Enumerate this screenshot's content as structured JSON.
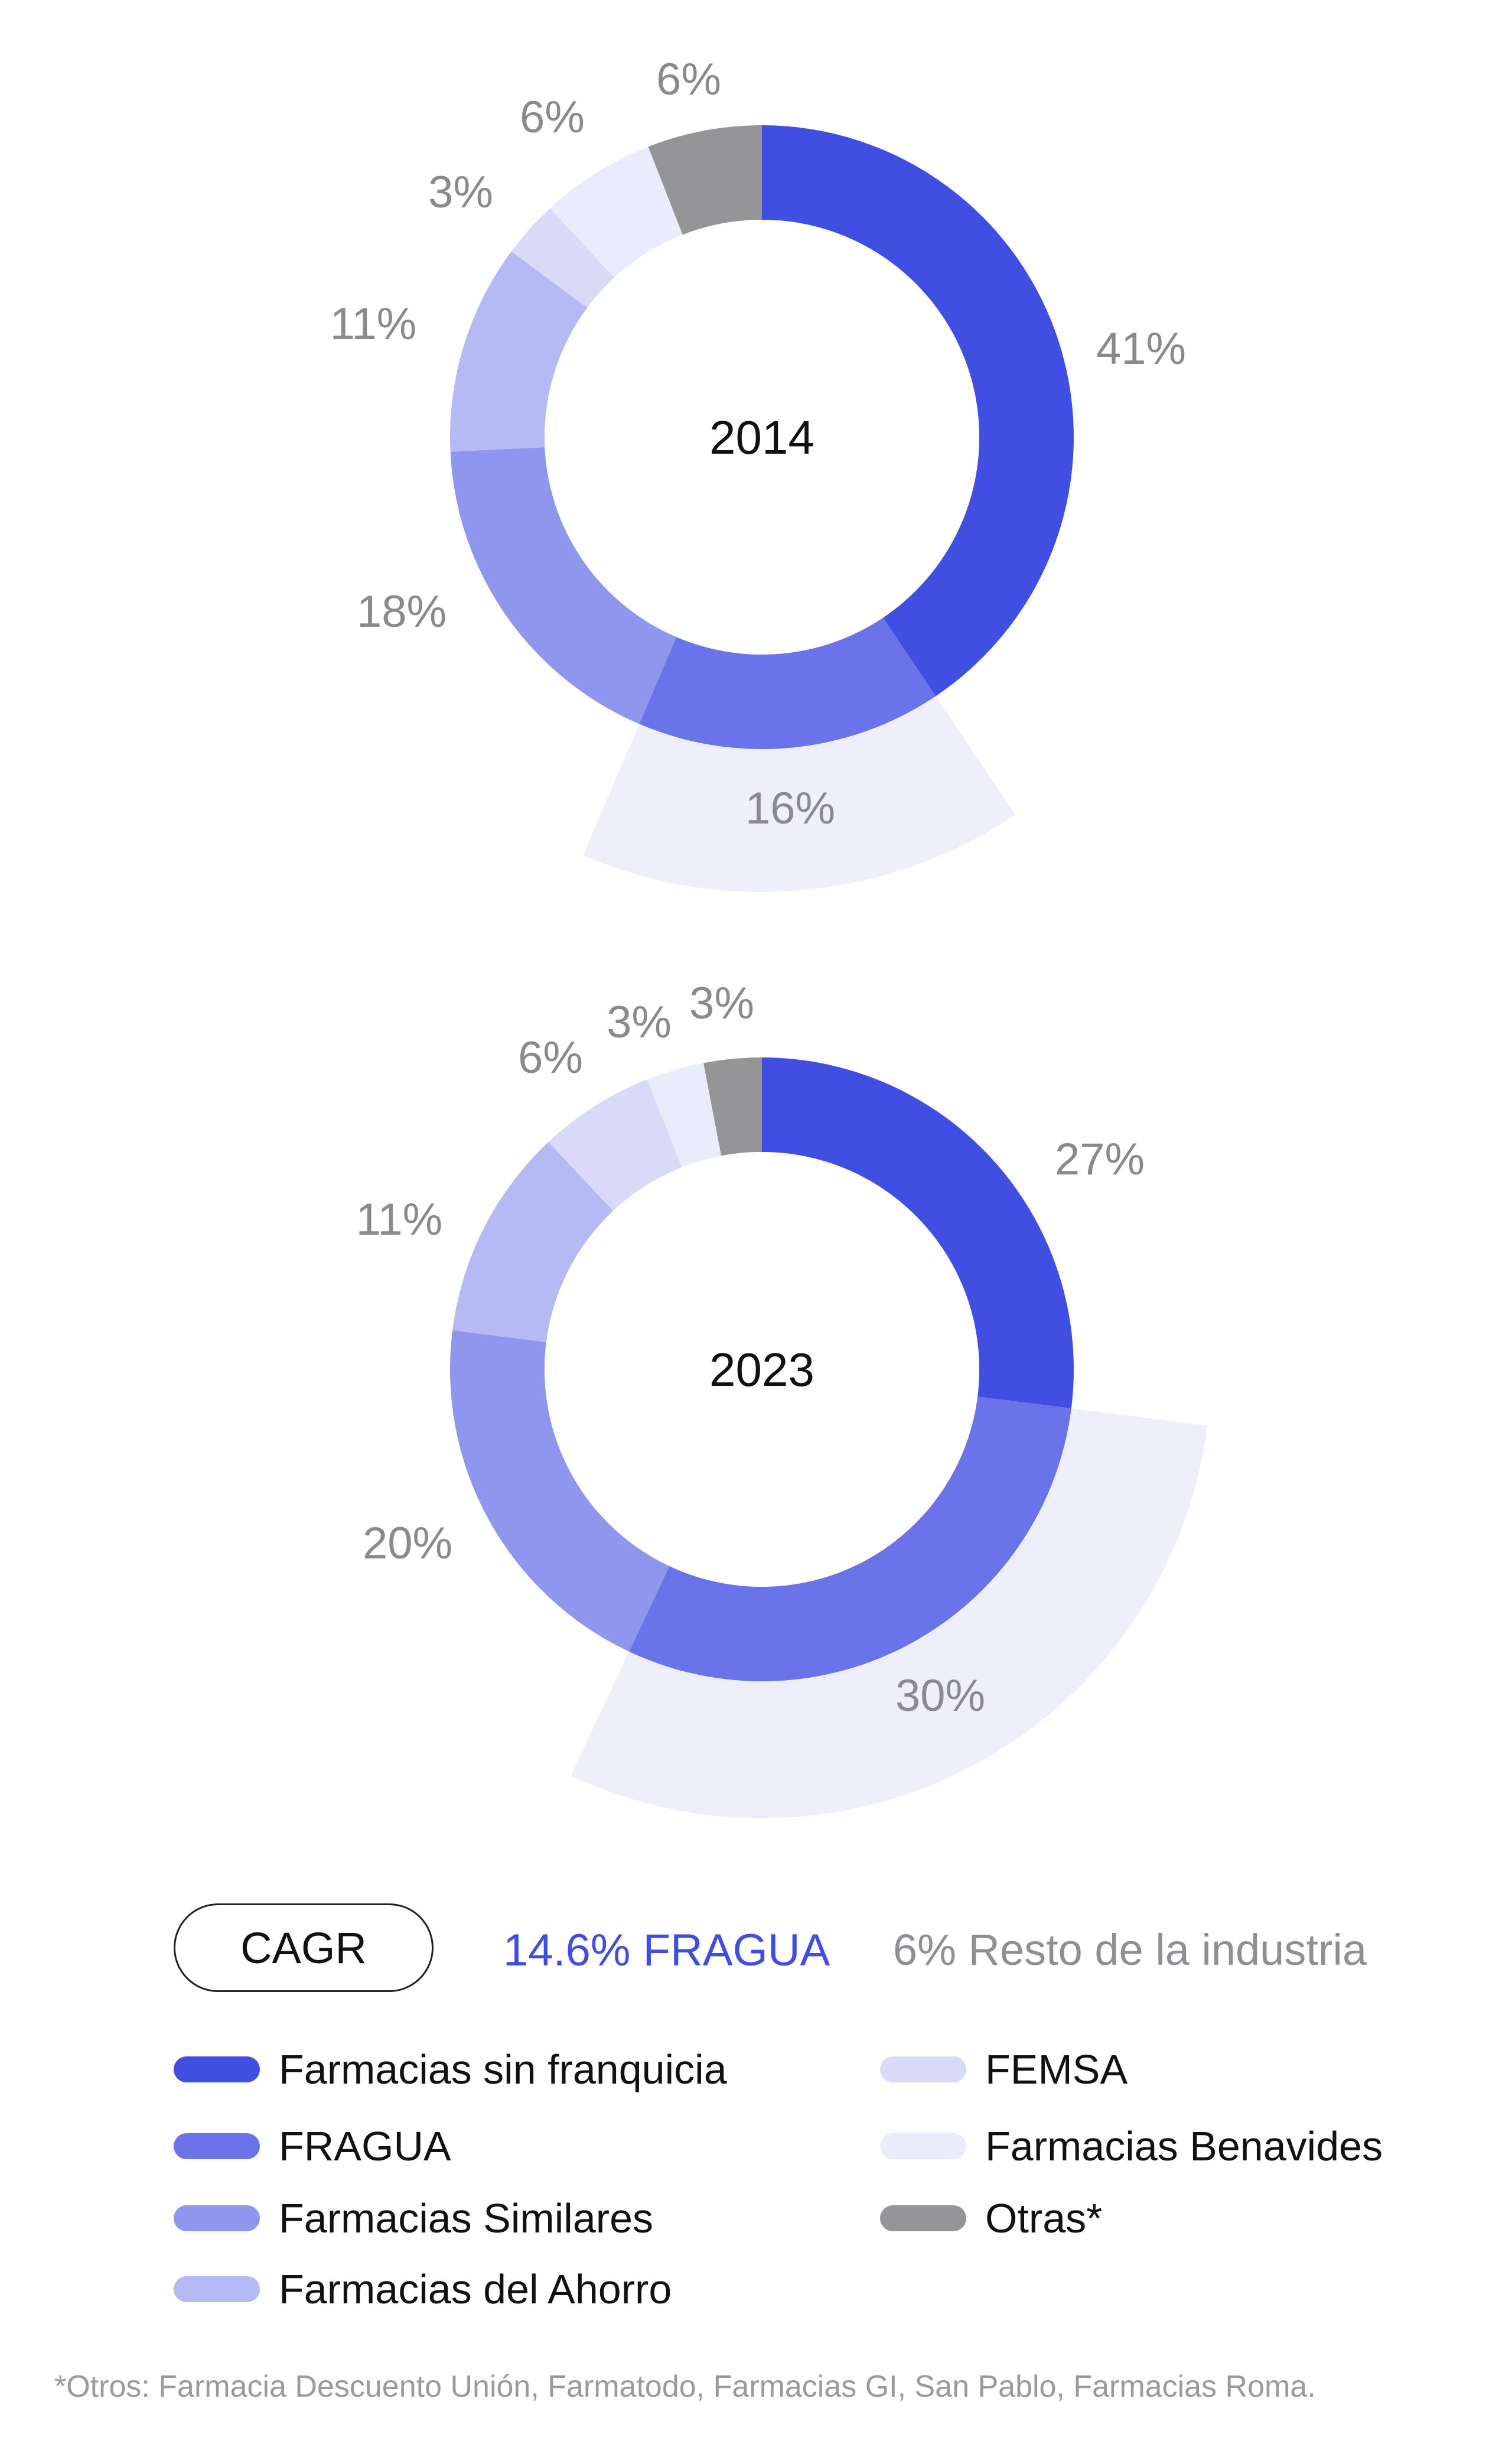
{
  "chart_data": [
    {
      "type": "pie",
      "title": "2014",
      "categories": [
        "Farmacias sin franquicia",
        "FRAGUA",
        "Farmacias Similares",
        "Farmacias del Ahorro",
        "FEMSA",
        "Farmacias Benavides",
        "Otras*"
      ],
      "values": [
        41,
        16,
        18,
        11,
        3,
        6,
        6
      ],
      "labels": [
        "41%",
        "16%",
        "18%",
        "11%",
        "3%",
        "6%",
        "6%"
      ],
      "highlight": "FRAGUA"
    },
    {
      "type": "pie",
      "title": "2023",
      "categories": [
        "Farmacias sin franquicia",
        "FRAGUA",
        "Farmacias Similares",
        "Farmacias del Ahorro",
        "FEMSA",
        "Farmacias Benavides",
        "Otras*"
      ],
      "values": [
        27,
        30,
        20,
        11,
        6,
        3,
        3
      ],
      "labels": [
        "27%",
        "30%",
        "20%",
        "11%",
        "6%",
        "3%",
        "3%"
      ],
      "highlight": "FRAGUA"
    }
  ],
  "colors": {
    "Farmacias sin franquicia": "#414ee2",
    "FRAGUA": "#6a73ea",
    "Farmacias Similares": "#8f96ee",
    "Farmacias del Ahorro": "#b5b9f4",
    "FEMSA": "#d8daf8",
    "Farmacias Benavides": "#eaebfb",
    "Otras*": "#959598",
    "highlight_wedge": "#eeeffb"
  },
  "cagr": {
    "label": "CAGR",
    "fragua": "14.6% FRAGUA",
    "rest": "6% Resto de la industria"
  },
  "legend": [
    {
      "label": "Farmacias sin franquicia",
      "color": "#414ee2"
    },
    {
      "label": "FRAGUA",
      "color": "#6a73ea"
    },
    {
      "label": "Farmacias Similares",
      "color": "#8f96ee"
    },
    {
      "label": "Farmacias del Ahorro",
      "color": "#b5b9f4"
    },
    {
      "label": "FEMSA",
      "color": "#d8daf8"
    },
    {
      "label": "Farmacias Benavides",
      "color": "#eaebfb"
    },
    {
      "label": "Otras*",
      "color": "#959598"
    }
  ],
  "footnote": "*Otros: Farmacia Descuento Unión, Farmatodo, Farmacias GI, San Pablo, Farmacias Roma."
}
